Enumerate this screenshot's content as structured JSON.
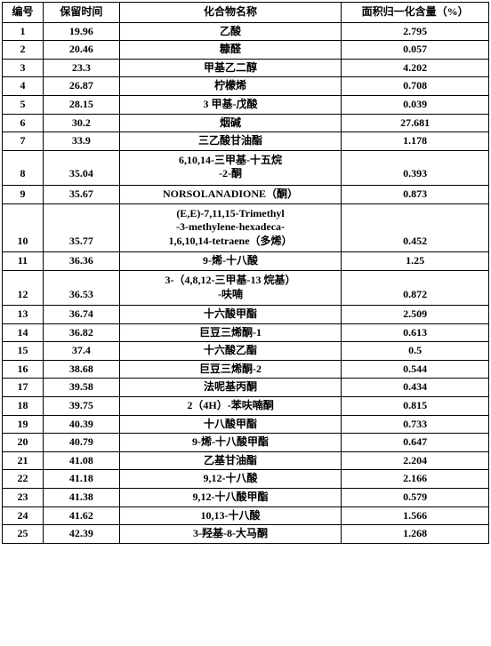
{
  "headers": {
    "num": "编号",
    "time": "保留时间",
    "name": "化合物名称",
    "pct": "面积归一化含量（%）"
  },
  "rows": [
    {
      "num": "1",
      "time": "19.96",
      "name": "乙酸",
      "pct": "2.795"
    },
    {
      "num": "2",
      "time": "20.46",
      "name": "糠醛",
      "pct": "0.057"
    },
    {
      "num": "3",
      "time": "23.3",
      "name": "甲基乙二醇",
      "pct": "4.202"
    },
    {
      "num": "4",
      "time": "26.87",
      "name": "柠檬烯",
      "pct": "0.708"
    },
    {
      "num": "5",
      "time": "28.15",
      "name": "3 甲基-戊酸",
      "pct": "0.039"
    },
    {
      "num": "6",
      "time": "30.2",
      "name": "烟碱",
      "pct": "27.681"
    },
    {
      "num": "7",
      "time": "33.9",
      "name": "三乙酸甘油酯",
      "pct": "1.178"
    },
    {
      "num": "8",
      "time": "35.04",
      "name": "6,10,14-三甲基-十五烷\n-2-酮",
      "pct": "0.393",
      "multiline": true
    },
    {
      "num": "9",
      "time": "35.67",
      "name": "NORSOLANADIONE（酮）",
      "pct": "0.873"
    },
    {
      "num": "10",
      "time": "35.77",
      "name": "(E,E)-7,11,15-Trimethyl\n-3-methylene-hexadeca-\n1,6,10,14-tetraene（多烯）",
      "pct": "0.452",
      "multiline": true
    },
    {
      "num": "11",
      "time": "36.36",
      "name": "9-烯-十八酸",
      "pct": "1.25"
    },
    {
      "num": "12",
      "time": "36.53",
      "name": "3-（4,8,12-三甲基-13 烷基）\n-呋喃",
      "pct": "0.872",
      "multiline": true
    },
    {
      "num": "13",
      "time": "36.74",
      "name": "十六酸甲酯",
      "pct": "2.509"
    },
    {
      "num": "14",
      "time": "36.82",
      "name": "巨豆三烯酮-1",
      "pct": "0.613"
    },
    {
      "num": "15",
      "time": "37.4",
      "name": "十六酸乙酯",
      "pct": "0.5"
    },
    {
      "num": "16",
      "time": "38.68",
      "name": "巨豆三烯酮-2",
      "pct": "0.544"
    },
    {
      "num": "17",
      "time": "39.58",
      "name": "法呢基丙酮",
      "pct": "0.434"
    },
    {
      "num": "18",
      "time": "39.75",
      "name": "2（4H）-苯呋喃酮",
      "pct": "0.815"
    },
    {
      "num": "19",
      "time": "40.39",
      "name": "十八酸甲酯",
      "pct": "0.733"
    },
    {
      "num": "20",
      "time": "40.79",
      "name": "9-烯-十八酸甲酯",
      "pct": "0.647"
    },
    {
      "num": "21",
      "time": "41.08",
      "name": "乙基甘油酯",
      "pct": "2.204"
    },
    {
      "num": "22",
      "time": "41.18",
      "name": "9,12-十八酸",
      "pct": "2.166"
    },
    {
      "num": "23",
      "time": "41.38",
      "name": "9,12-十八酸甲酯",
      "pct": "0.579"
    },
    {
      "num": "24",
      "time": "41.62",
      "name": "10,13-十八酸",
      "pct": "1.566"
    },
    {
      "num": "25",
      "time": "42.39",
      "name": "3-羟基-8-大马酮",
      "pct": "1.268"
    }
  ]
}
